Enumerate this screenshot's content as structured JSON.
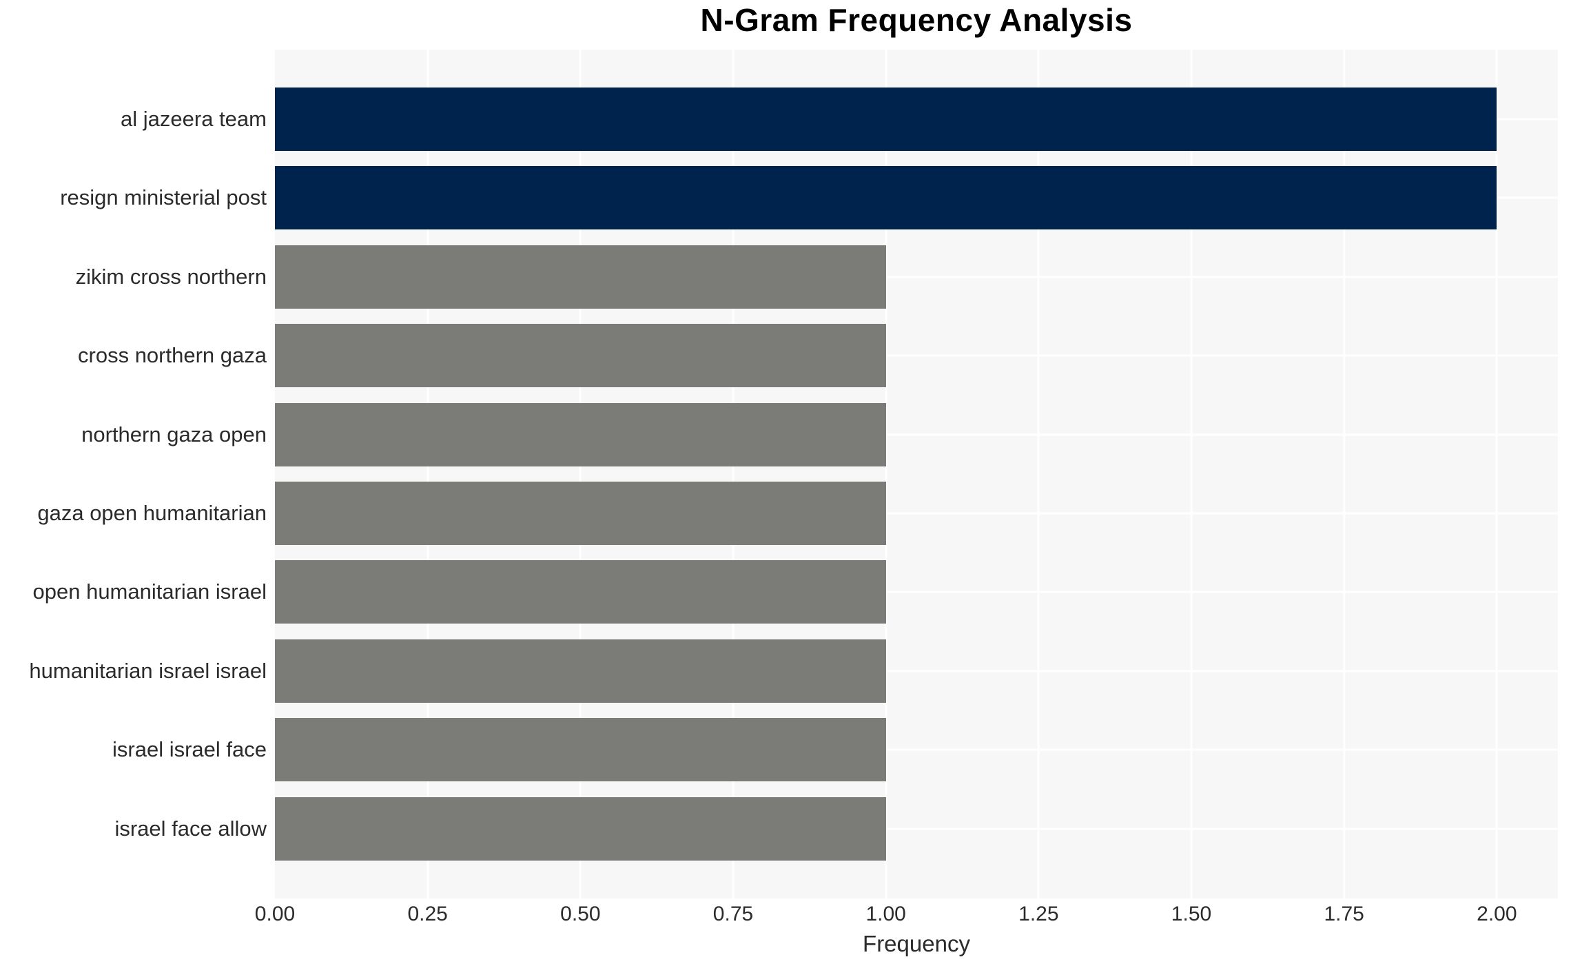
{
  "chart_data": {
    "type": "bar",
    "orientation": "horizontal",
    "title": "N-Gram Frequency Analysis",
    "xlabel": "Frequency",
    "ylabel": "",
    "categories": [
      "al jazeera team",
      "resign ministerial post",
      "zikim cross northern",
      "cross northern gaza",
      "northern gaza open",
      "gaza open humanitarian",
      "open humanitarian israel",
      "humanitarian israel israel",
      "israel israel face",
      "israel face allow"
    ],
    "values": [
      2,
      2,
      1,
      1,
      1,
      1,
      1,
      1,
      1,
      1
    ],
    "bar_colors": [
      "#00234d",
      "#00234d",
      "#7b7b78",
      "#7b7b78",
      "#7b7b78",
      "#7b7b78",
      "#7b7b78",
      "#7b7b78",
      "#7b7b78",
      "#7b7b78"
    ],
    "xlim": [
      0,
      2.1
    ],
    "xticks": [
      "0.00",
      "0.25",
      "0.50",
      "0.75",
      "1.00",
      "1.25",
      "1.50",
      "1.75",
      "2.00"
    ],
    "xtick_values": [
      0,
      0.25,
      0.5,
      0.75,
      1.0,
      1.25,
      1.5,
      1.75,
      2.0
    ],
    "grid": true,
    "legend": "none",
    "colors": {
      "highlight_bar": "#00234d",
      "default_bar": "#7b7b78",
      "plot_background": "#f7f7f7",
      "gridline": "#ffffff",
      "text": "#2b2b2b",
      "title_text": "#000000"
    }
  }
}
